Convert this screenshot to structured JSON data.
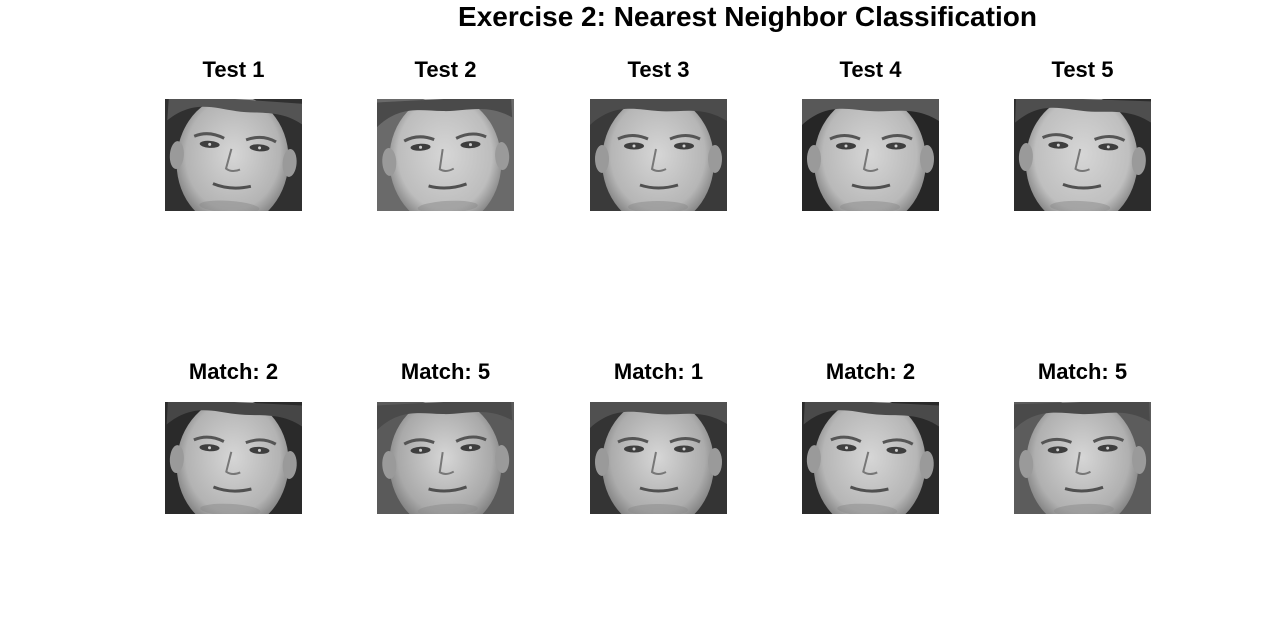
{
  "title": "Exercise 2: Nearest Neighbor Classification",
  "rows": [
    {
      "row": "test",
      "panels": [
        {
          "label": "Test 1",
          "face": {
            "skin": "#b4b4b4",
            "hair": "#545454",
            "bg": "#303030",
            "tilt": 4
          }
        },
        {
          "label": "Test 2",
          "face": {
            "skin": "#bdbdbd",
            "hair": "#4a4a4a",
            "bg": "#6a6a6a",
            "tilt": -3
          }
        },
        {
          "label": "Test 3",
          "face": {
            "skin": "#b6b6b6",
            "hair": "#4c4c4c",
            "bg": "#3a3a3a",
            "tilt": 0
          }
        },
        {
          "label": "Test 4",
          "face": {
            "skin": "#b9b9b9",
            "hair": "#585858",
            "bg": "#262626",
            "tilt": 0
          }
        },
        {
          "label": "Test 5",
          "face": {
            "skin": "#bfbfbf",
            "hair": "#4e4e4e",
            "bg": "#2c2c2c",
            "tilt": 2
          }
        }
      ]
    },
    {
      "row": "match",
      "panels": [
        {
          "label": "Match: 2",
          "face": {
            "skin": "#b3b3b3",
            "hair": "#464646",
            "bg": "#2a2a2a",
            "tilt": 3
          }
        },
        {
          "label": "Match: 5",
          "face": {
            "skin": "#a9a9a9",
            "hair": "#4a4a4a",
            "bg": "#5a5a5a",
            "tilt": -3
          }
        },
        {
          "label": "Match: 1",
          "face": {
            "skin": "#acacac",
            "hair": "#505050",
            "bg": "#343434",
            "tilt": 0
          }
        },
        {
          "label": "Match: 2",
          "face": {
            "skin": "#b6b6b6",
            "hair": "#4a4a4a",
            "bg": "#2a2a2a",
            "tilt": 3
          }
        },
        {
          "label": "Match: 5",
          "face": {
            "skin": "#b0b0b0",
            "hair": "#4a4a4a",
            "bg": "#5c5c5c",
            "tilt": -2
          }
        }
      ]
    }
  ]
}
